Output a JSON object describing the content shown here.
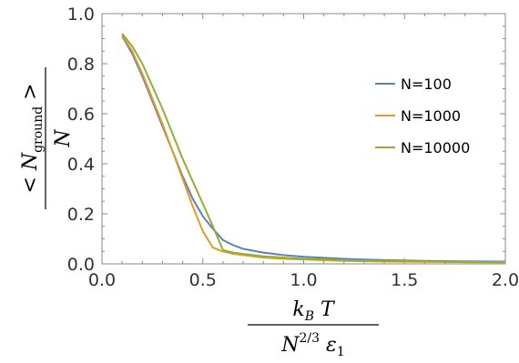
{
  "chart_data": {
    "type": "line",
    "title": "",
    "xlim": [
      0,
      2.0
    ],
    "ylim": [
      0,
      1.0
    ],
    "xticks": [
      0.0,
      0.5,
      1.0,
      1.5,
      2.0
    ],
    "xtick_labels": [
      "0.0",
      "0.5",
      "1.0",
      "1.5",
      "2.0"
    ],
    "yticks": [
      0.0,
      0.2,
      0.4,
      0.6,
      0.8,
      1.0
    ],
    "ytick_labels": [
      "0.0",
      "0.2",
      "0.4",
      "0.6",
      "0.8",
      "1.0"
    ],
    "xlabel": {
      "numerator": {
        "main": "k",
        "sub": "B",
        "after": " T"
      },
      "denominator": {
        "main": "N",
        "sup": "2/3",
        "eps": " ε",
        "eps_sub": "1"
      }
    },
    "ylabel": {
      "numerator": {
        "before": "< N",
        "sub": "ground",
        "after": " >"
      },
      "denominator": "N"
    },
    "grid": false,
    "legend_position": "right",
    "series": [
      {
        "name": "N=100",
        "color": "#5E81B5",
        "x": [
          0.1,
          0.15,
          0.2,
          0.25,
          0.3,
          0.35,
          0.4,
          0.45,
          0.5,
          0.55,
          0.6,
          0.65,
          0.7,
          0.8,
          0.9,
          1.0,
          1.2,
          1.4,
          1.6,
          1.8,
          2.0
        ],
        "y": [
          0.91,
          0.84,
          0.75,
          0.65,
          0.55,
          0.45,
          0.35,
          0.26,
          0.19,
          0.14,
          0.095,
          0.075,
          0.06,
          0.045,
          0.035,
          0.028,
          0.02,
          0.015,
          0.012,
          0.01,
          0.009
        ]
      },
      {
        "name": "N=1000",
        "color": "#E19C24",
        "x": [
          0.1,
          0.15,
          0.2,
          0.25,
          0.3,
          0.35,
          0.4,
          0.45,
          0.5,
          0.55,
          0.58,
          0.6,
          0.65,
          0.7,
          0.8,
          0.9,
          1.0,
          1.2,
          1.4,
          1.6,
          1.8,
          2.0
        ],
        "y": [
          0.915,
          0.85,
          0.76,
          0.66,
          0.56,
          0.45,
          0.34,
          0.23,
          0.13,
          0.065,
          0.055,
          0.05,
          0.04,
          0.035,
          0.025,
          0.02,
          0.017,
          0.012,
          0.009,
          0.008,
          0.007,
          0.006
        ]
      },
      {
        "name": "N=10000",
        "color": "#8FB032",
        "x": [
          0.1,
          0.15,
          0.2,
          0.25,
          0.3,
          0.35,
          0.4,
          0.45,
          0.5,
          0.55,
          0.6,
          0.65,
          0.7,
          0.8,
          0.9,
          1.0,
          1.2,
          1.4,
          1.6,
          1.8,
          2.0
        ],
        "y": [
          0.92,
          0.87,
          0.8,
          0.71,
          0.62,
          0.52,
          0.42,
          0.33,
          0.24,
          0.15,
          0.055,
          0.045,
          0.04,
          0.03,
          0.025,
          0.02,
          0.015,
          0.012,
          0.01,
          0.008,
          0.007
        ]
      }
    ]
  }
}
